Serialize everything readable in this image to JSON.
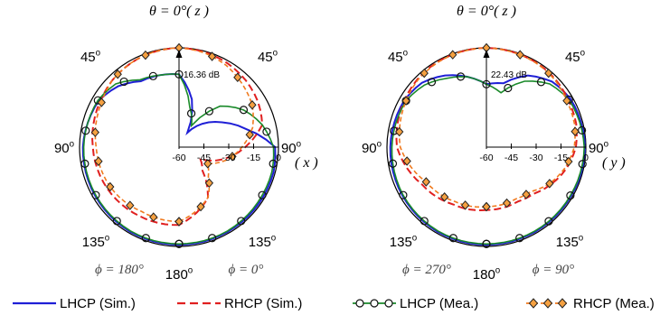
{
  "chart_data": [
    {
      "type": "polar",
      "radial_unit": "dB",
      "rlim": [
        -60,
        0
      ],
      "radial_ticks": [
        "-60",
        "-45",
        "-30",
        "-15",
        "0"
      ],
      "axis_name": "( x )",
      "top_label": "θ = 0°( z )",
      "angle_labels": {
        "top_left": "45",
        "top_right": "45",
        "left": "90",
        "right": "90",
        "bottom_left": "135",
        "bottom_right": "135",
        "bottom": "180"
      },
      "phi_left": "ϕ = 180°",
      "phi_right": "ϕ = 0°",
      "annotation": "16.36 dB",
      "series": [
        {
          "name": "LHCP (Sim.)",
          "theta": [
            -180,
            -150,
            -120,
            -90,
            -60,
            -45,
            -30,
            -15,
            0,
            15,
            30,
            45,
            60,
            75,
            90,
            105,
            120,
            150,
            180
          ],
          "r_db": [
            -1,
            -1,
            -1.5,
            -2,
            -4,
            -8,
            -14,
            -15,
            -16,
            -30,
            -50,
            -40,
            -30,
            -18,
            -2,
            -1,
            -1,
            -1,
            -1
          ]
        },
        {
          "name": "RHCP (Sim.)",
          "theta": [
            -180,
            -150,
            -120,
            -90,
            -60,
            -45,
            -30,
            -15,
            0,
            15,
            30,
            45,
            60,
            75,
            90,
            105,
            120,
            135,
            150,
            180
          ],
          "r_db": [
            -13,
            -12,
            -10,
            -8,
            -5,
            -3,
            -1.5,
            -0.5,
            0,
            -0.5,
            -1.5,
            -3,
            -5,
            -8,
            -20,
            -32,
            -45,
            -40,
            -25,
            -13
          ]
        },
        {
          "name": "LHCP (Mea.)",
          "theta": [
            -180,
            -150,
            -120,
            -90,
            -60,
            -45,
            -30,
            -15,
            0,
            15,
            30,
            45,
            60,
            75,
            90,
            105,
            120,
            150,
            180
          ],
          "r_db": [
            -1.5,
            -1.5,
            -2,
            -2.5,
            -3.5,
            -6,
            -13,
            -15,
            -16,
            -35,
            -45,
            -25,
            -15,
            -8,
            -3,
            -2,
            -2,
            -1.5,
            -1.5
          ]
        },
        {
          "name": "RHCP (Mea.)",
          "theta": [
            -180,
            -150,
            -120,
            -90,
            -60,
            -45,
            -30,
            -15,
            0,
            15,
            30,
            45,
            60,
            75,
            90,
            105,
            120,
            135,
            150,
            180
          ],
          "r_db": [
            -15,
            -15,
            -12,
            -10,
            -6,
            -3,
            -1.5,
            -0.5,
            0,
            -1,
            -3,
            -6,
            -9,
            -14,
            -22,
            -30,
            -40,
            -35,
            -25,
            -15
          ]
        }
      ]
    },
    {
      "type": "polar",
      "radial_unit": "dB",
      "rlim": [
        -60,
        0
      ],
      "radial_ticks": [
        "-60",
        "-45",
        "-30",
        "-15",
        "0"
      ],
      "axis_name": "( y )",
      "top_label": "θ = 0°( z )",
      "angle_labels": {
        "top_left": "45",
        "top_right": "45",
        "left": "90",
        "right": "90",
        "bottom_left": "135",
        "bottom_right": "135",
        "bottom": "180"
      },
      "phi_left": "ϕ = 270°",
      "phi_right": "ϕ = 90°",
      "annotation": "22.43 dB",
      "series": [
        {
          "name": "LHCP (Sim.)",
          "theta": [
            -180,
            -150,
            -120,
            -90,
            -60,
            -45,
            -30,
            -15,
            0,
            15,
            30,
            45,
            60,
            90,
            120,
            150,
            180
          ],
          "r_db": [
            -1,
            -1,
            -1.5,
            -2,
            -3,
            -5,
            -10,
            -16,
            -22,
            -20,
            -10,
            -4,
            -1.5,
            -0.5,
            -1,
            -1,
            -1
          ]
        },
        {
          "name": "RHCP (Sim.)",
          "theta": [
            -180,
            -150,
            -120,
            -90,
            -60,
            -45,
            -30,
            -15,
            0,
            15,
            30,
            45,
            60,
            75,
            90,
            105,
            120,
            135,
            150,
            180
          ],
          "r_db": [
            -22,
            -20,
            -15,
            -6,
            -3,
            -1.5,
            -0.7,
            -0.3,
            0,
            -0.3,
            -0.7,
            -1.5,
            -3,
            -4,
            -6,
            -10,
            -15,
            -20,
            -22,
            -22
          ]
        },
        {
          "name": "LHCP (Mea.)",
          "theta": [
            -180,
            -150,
            -120,
            -90,
            -60,
            -45,
            -30,
            -15,
            0,
            15,
            30,
            45,
            60,
            90,
            120,
            150,
            180
          ],
          "r_db": [
            -1.5,
            -1.5,
            -2,
            -3,
            -4,
            -7,
            -12,
            -16,
            -22,
            -26,
            -14,
            -6,
            -2.5,
            -1,
            -1.5,
            -1.5,
            -1.5
          ]
        },
        {
          "name": "RHCP (Mea.)",
          "theta": [
            -180,
            -150,
            -120,
            -90,
            -60,
            -45,
            -30,
            -15,
            0,
            15,
            30,
            45,
            60,
            75,
            90,
            105,
            120,
            135,
            150,
            180
          ],
          "r_db": [
            -24,
            -22,
            -18,
            -8,
            -4,
            -2,
            -1,
            -0.4,
            0,
            -0.4,
            -1,
            -2,
            -4,
            -5,
            -7,
            -11,
            -16,
            -22,
            -24,
            -24
          ]
        }
      ]
    }
  ],
  "legend": [
    {
      "label": "LHCP (Sim.)",
      "color": "#1f1fd6",
      "style": "solid",
      "marker": "none"
    },
    {
      "label": "RHCP (Sim.)",
      "color": "#e02020",
      "style": "dash",
      "marker": "none"
    },
    {
      "label": "LHCP (Mea.)",
      "color": "#1a8a2a",
      "style": "solid",
      "marker": "circle"
    },
    {
      "label": "RHCP (Mea.)",
      "color": "#f07a1e",
      "style": "dash",
      "marker": "diamond"
    }
  ]
}
